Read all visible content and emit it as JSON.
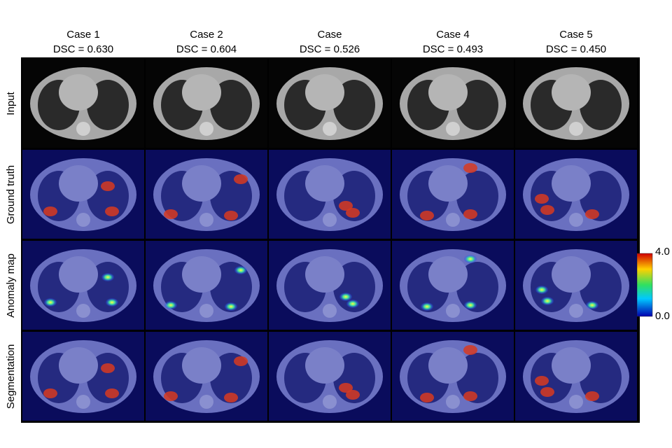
{
  "columns": [
    {
      "title": "Case 1",
      "dsc": "DSC = 0.630"
    },
    {
      "title": "Case 2",
      "dsc": "DSC = 0.604"
    },
    {
      "title": "Case",
      "dsc": "DSC = 0.526"
    },
    {
      "title": "Case 4",
      "dsc": "DSC = 0.493"
    },
    {
      "title": "Case 5",
      "dsc": "DSC = 0.450"
    }
  ],
  "rows": [
    "Input",
    "Ground truth",
    "Anomaly map",
    "Segmentation"
  ],
  "colorbar": {
    "max": "4.0",
    "min": "0.0"
  }
}
